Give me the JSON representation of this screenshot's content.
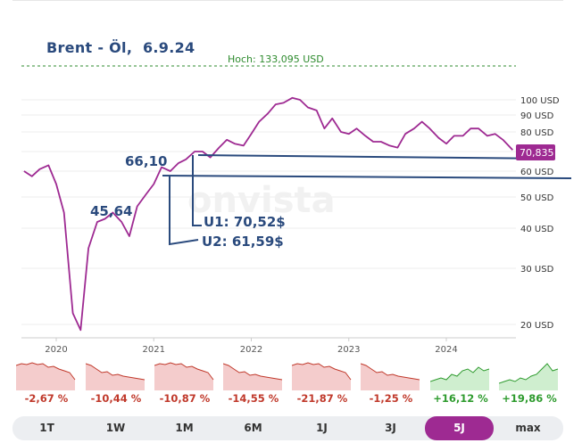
{
  "chart": {
    "title": "Brent - Öl,  6.9.24",
    "high_label": "Hoch: 133,095 USD",
    "current_price": "70,835",
    "watermark": "onvista",
    "y_ticks": [
      "100 USD",
      "90 USD",
      "80 USD",
      "70 USD",
      "60 USD",
      "50 USD",
      "40 USD",
      "30 USD",
      "20 USD"
    ],
    "x_ticks": [
      "2020",
      "2021",
      "2022",
      "2023",
      "2024"
    ],
    "annotations": {
      "level_66": "66,10",
      "level_45": "45,64",
      "u1": "U1: 70,52$",
      "u2": "U2: 61,59$"
    },
    "colors": {
      "line": "#9e2a92",
      "annotation": "#2a4a7d",
      "high": "#2e8b2e"
    }
  },
  "chart_data": {
    "type": "line",
    "title": "Brent - Öl,  6.9.24",
    "xlabel": "",
    "ylabel": "USD",
    "ylim": [
      15,
      140
    ],
    "x": [
      2019.67,
      2019.75,
      2019.83,
      2019.92,
      2020.0,
      2020.08,
      2020.17,
      2020.25,
      2020.33,
      2020.42,
      2020.5,
      2020.58,
      2020.67,
      2020.75,
      2020.83,
      2020.92,
      2021.0,
      2021.08,
      2021.17,
      2021.25,
      2021.33,
      2021.42,
      2021.5,
      2021.58,
      2021.67,
      2021.75,
      2021.83,
      2021.92,
      2022.0,
      2022.08,
      2022.17,
      2022.25,
      2022.33,
      2022.42,
      2022.5,
      2022.58,
      2022.67,
      2022.75,
      2022.83,
      2022.92,
      2023.0,
      2023.08,
      2023.17,
      2023.25,
      2023.33,
      2023.42,
      2023.5,
      2023.58,
      2023.67,
      2023.75,
      2023.83,
      2023.92,
      2024.0,
      2024.08,
      2024.17,
      2024.25,
      2024.33,
      2024.42,
      2024.5,
      2024.58,
      2024.68
    ],
    "values": [
      60,
      58,
      61,
      63,
      55,
      45,
      22,
      19,
      35,
      42,
      43,
      45,
      42,
      38,
      47,
      51,
      55,
      62,
      60,
      64,
      66,
      70,
      70,
      67,
      72,
      76,
      74,
      73,
      79,
      86,
      91,
      97,
      98,
      102,
      100,
      95,
      93,
      82,
      88,
      80,
      79,
      82,
      78,
      75,
      75,
      73,
      72,
      79,
      82,
      86,
      82,
      77,
      74,
      78,
      78,
      82,
      82,
      78,
      79,
      76,
      70.835
    ],
    "series": [
      {
        "name": "Brent - Öl",
        "values": "see values"
      }
    ],
    "annotations": [
      {
        "label": "Hoch: 133,095 USD",
        "type": "dashed-hline"
      },
      {
        "label": "66,10"
      },
      {
        "label": "45,64"
      },
      {
        "label": "U1: 70,52$",
        "value": 70.52,
        "type": "trendline"
      },
      {
        "label": "U2: 61,59$",
        "value": 61.59,
        "type": "trendline"
      }
    ]
  },
  "mini_charts": [
    {
      "pct": "-2,67 %",
      "trend": "neg"
    },
    {
      "pct": "-10,44 %",
      "trend": "neg"
    },
    {
      "pct": "-10,87 %",
      "trend": "neg"
    },
    {
      "pct": "-14,55 %",
      "trend": "neg"
    },
    {
      "pct": "-21,87 %",
      "trend": "neg"
    },
    {
      "pct": "-1,25 %",
      "trend": "neg"
    },
    {
      "pct": "+16,12 %",
      "trend": "pos"
    },
    {
      "pct": "+19,86 %",
      "trend": "pos"
    }
  ],
  "ranges": {
    "items": [
      "1T",
      "1W",
      "1M",
      "6M",
      "1J",
      "3J",
      "5J",
      "max"
    ],
    "selected": "5J"
  }
}
